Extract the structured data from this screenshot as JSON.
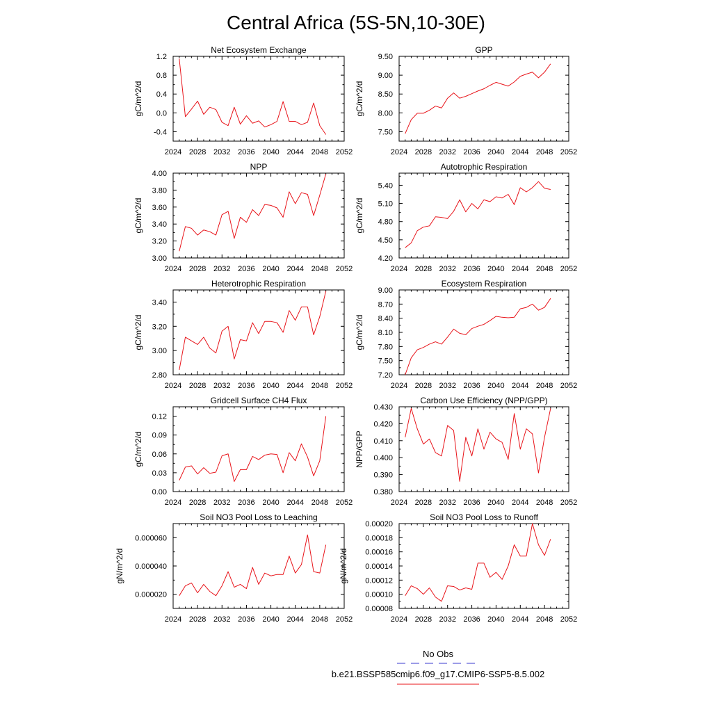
{
  "figure": {
    "title": "Central Africa (5S-5N,10-30E)",
    "series_color": "#e8141a",
    "obs_color": "#3a3acf"
  },
  "legend": {
    "obs_label": "No Obs",
    "model_label": "b.e21.BSSP585cmip6.f09_g17.CMIP6-SSP5-8.5.002"
  },
  "chart_data": [
    {
      "type": "line",
      "title": "Net Ecosystem Exchange",
      "ylabel": "gC/m^2/d",
      "xlim": [
        2024,
        2052
      ],
      "xticks": [
        "2024",
        "2028",
        "2032",
        "2036",
        "2040",
        "2044",
        "2048",
        "2052"
      ],
      "ylim": [
        -0.6,
        1.2
      ],
      "yticks": [
        "-0.4",
        "0.0",
        "0.4",
        "0.8",
        "1.2"
      ],
      "x": [
        2025,
        2026,
        2027,
        2028,
        2029,
        2030,
        2031,
        2032,
        2033,
        2034,
        2035,
        2036,
        2037,
        2038,
        2039,
        2040,
        2041,
        2042,
        2043,
        2044,
        2045,
        2046,
        2047,
        2048,
        2049
      ],
      "y": [
        1.15,
        -0.08,
        0.08,
        0.25,
        -0.03,
        0.12,
        0.07,
        -0.2,
        -0.27,
        0.12,
        -0.24,
        -0.06,
        -0.22,
        -0.17,
        -0.3,
        -0.25,
        -0.18,
        0.24,
        -0.18,
        -0.18,
        -0.25,
        -0.2,
        0.21,
        -0.27,
        -0.46
      ]
    },
    {
      "type": "line",
      "title": "GPP",
      "ylabel": "gC/m^2/d",
      "xlim": [
        2024,
        2052
      ],
      "xticks": [
        "2024",
        "2028",
        "2032",
        "2036",
        "2040",
        "2044",
        "2048",
        "2052"
      ],
      "ylim": [
        7.25,
        9.5
      ],
      "yticks": [
        "7.50",
        "8.00",
        "8.50",
        "9.00",
        "9.50"
      ],
      "x": [
        2025,
        2026,
        2027,
        2028,
        2029,
        2030,
        2031,
        2032,
        2033,
        2034,
        2035,
        2036,
        2037,
        2038,
        2039,
        2040,
        2041,
        2042,
        2043,
        2044,
        2045,
        2046,
        2047,
        2048,
        2049
      ],
      "y": [
        7.45,
        7.82,
        7.99,
        7.99,
        8.07,
        8.18,
        8.13,
        8.39,
        8.53,
        8.39,
        8.44,
        8.51,
        8.58,
        8.64,
        8.73,
        8.81,
        8.76,
        8.71,
        8.82,
        8.97,
        9.03,
        9.08,
        8.93,
        9.08,
        9.3
      ]
    },
    {
      "type": "line",
      "title": "NPP",
      "ylabel": "gC/m^2/d",
      "xlim": [
        2024,
        2052
      ],
      "xticks": [
        "2024",
        "2028",
        "2032",
        "2036",
        "2040",
        "2044",
        "2048",
        "2052"
      ],
      "ylim": [
        3.0,
        4.0
      ],
      "yticks": [
        "3.00",
        "3.20",
        "3.40",
        "3.60",
        "3.80",
        "4.00"
      ],
      "x": [
        2025,
        2026,
        2027,
        2028,
        2029,
        2030,
        2031,
        2032,
        2033,
        2034,
        2035,
        2036,
        2037,
        2038,
        2039,
        2040,
        2041,
        2042,
        2043,
        2044,
        2045,
        2046,
        2047,
        2048,
        2049
      ],
      "y": [
        3.08,
        3.37,
        3.35,
        3.27,
        3.33,
        3.31,
        3.27,
        3.51,
        3.55,
        3.23,
        3.48,
        3.42,
        3.57,
        3.5,
        3.63,
        3.62,
        3.59,
        3.48,
        3.78,
        3.64,
        3.77,
        3.75,
        3.5,
        3.74,
        3.99
      ]
    },
    {
      "type": "line",
      "title": "Autotrophic Respiration",
      "ylabel": "gC/m^2/d",
      "xlim": [
        2024,
        2052
      ],
      "xticks": [
        "2024",
        "2028",
        "2032",
        "2036",
        "2040",
        "2044",
        "2048",
        "2052"
      ],
      "ylim": [
        4.2,
        5.6
      ],
      "yticks": [
        "4.20",
        "4.50",
        "4.80",
        "5.10",
        "5.40"
      ],
      "x": [
        2025,
        2026,
        2027,
        2028,
        2029,
        2030,
        2031,
        2032,
        2033,
        2034,
        2035,
        2036,
        2037,
        2038,
        2039,
        2040,
        2041,
        2042,
        2043,
        2044,
        2045,
        2046,
        2047,
        2048,
        2049
      ],
      "y": [
        4.37,
        4.45,
        4.65,
        4.71,
        4.73,
        4.88,
        4.87,
        4.85,
        4.97,
        5.16,
        4.96,
        5.1,
        5.01,
        5.16,
        5.13,
        5.21,
        5.19,
        5.25,
        5.08,
        5.36,
        5.29,
        5.36,
        5.46,
        5.35,
        5.33
      ]
    },
    {
      "type": "line",
      "title": "Heterotrophic Respiration",
      "ylabel": "gC/m^2/d",
      "xlim": [
        2024,
        2052
      ],
      "xticks": [
        "2024",
        "2028",
        "2032",
        "2036",
        "2040",
        "2044",
        "2048",
        "2052"
      ],
      "ylim": [
        2.8,
        3.5
      ],
      "yticks": [
        "2.80",
        "3.00",
        "3.20",
        "3.40"
      ],
      "x": [
        2025,
        2026,
        2027,
        2028,
        2029,
        2030,
        2031,
        2032,
        2033,
        2034,
        2035,
        2036,
        2037,
        2038,
        2039,
        2040,
        2041,
        2042,
        2043,
        2044,
        2045,
        2046,
        2047,
        2048,
        2049
      ],
      "y": [
        2.84,
        3.11,
        3.08,
        3.05,
        3.11,
        3.02,
        2.98,
        3.16,
        3.2,
        2.93,
        3.09,
        3.08,
        3.23,
        3.14,
        3.24,
        3.24,
        3.23,
        3.15,
        3.33,
        3.25,
        3.36,
        3.36,
        3.13,
        3.28,
        3.49
      ]
    },
    {
      "type": "line",
      "title": "Ecosystem Respiration",
      "ylabel": "gC/m^2/d",
      "xlim": [
        2024,
        2052
      ],
      "xticks": [
        "2024",
        "2028",
        "2032",
        "2036",
        "2040",
        "2044",
        "2048",
        "2052"
      ],
      "ylim": [
        7.2,
        9.0
      ],
      "yticks": [
        "7.20",
        "7.50",
        "7.80",
        "8.10",
        "8.40",
        "8.70",
        "9.00"
      ],
      "x": [
        2025,
        2026,
        2027,
        2028,
        2029,
        2030,
        2031,
        2032,
        2033,
        2034,
        2035,
        2036,
        2037,
        2038,
        2039,
        2040,
        2041,
        2042,
        2043,
        2044,
        2045,
        2046,
        2047,
        2048,
        2049
      ],
      "y": [
        7.2,
        7.56,
        7.73,
        7.78,
        7.85,
        7.9,
        7.85,
        8.0,
        8.17,
        8.08,
        8.05,
        8.18,
        8.23,
        8.27,
        8.35,
        8.44,
        8.42,
        8.41,
        8.42,
        8.6,
        8.63,
        8.7,
        8.57,
        8.63,
        8.82
      ]
    },
    {
      "type": "line",
      "title": "Gridcell Surface CH4 Flux",
      "ylabel": "gC/m^2/d",
      "xlim": [
        2024,
        2052
      ],
      "xticks": [
        "2024",
        "2028",
        "2032",
        "2036",
        "2040",
        "2044",
        "2048",
        "2052"
      ],
      "ylim": [
        0.0,
        0.135
      ],
      "yticks": [
        "0.00",
        "0.03",
        "0.06",
        "0.09",
        "0.12"
      ],
      "x": [
        2025,
        2026,
        2027,
        2028,
        2029,
        2030,
        2031,
        2032,
        2033,
        2034,
        2035,
        2036,
        2037,
        2038,
        2039,
        2040,
        2041,
        2042,
        2043,
        2044,
        2045,
        2046,
        2047,
        2048,
        2049
      ],
      "y": [
        0.018,
        0.039,
        0.041,
        0.028,
        0.038,
        0.029,
        0.031,
        0.057,
        0.06,
        0.016,
        0.035,
        0.035,
        0.056,
        0.051,
        0.058,
        0.06,
        0.059,
        0.03,
        0.062,
        0.049,
        0.076,
        0.055,
        0.025,
        0.049,
        0.12
      ]
    },
    {
      "type": "line",
      "title": "Carbon Use Efficiency (NPP/GPP)",
      "ylabel": "NPP/GPP",
      "xlim": [
        2024,
        2052
      ],
      "xticks": [
        "2024",
        "2028",
        "2032",
        "2036",
        "2040",
        "2044",
        "2048",
        "2052"
      ],
      "ylim": [
        0.38,
        0.43
      ],
      "yticks": [
        "0.380",
        "0.390",
        "0.400",
        "0.410",
        "0.420",
        "0.430"
      ],
      "x": [
        2025,
        2026,
        2027,
        2028,
        2029,
        2030,
        2031,
        2032,
        2033,
        2034,
        2035,
        2036,
        2037,
        2038,
        2039,
        2040,
        2041,
        2042,
        2043,
        2044,
        2045,
        2046,
        2047,
        2048,
        2049
      ],
      "y": [
        0.412,
        0.429,
        0.417,
        0.408,
        0.411,
        0.403,
        0.401,
        0.419,
        0.416,
        0.386,
        0.412,
        0.401,
        0.417,
        0.405,
        0.415,
        0.411,
        0.409,
        0.399,
        0.426,
        0.405,
        0.417,
        0.414,
        0.391,
        0.412,
        0.429
      ]
    },
    {
      "type": "line",
      "title": "Soil NO3 Pool Loss to Leaching",
      "ylabel": "gN/m^2/d",
      "xlim": [
        2024,
        2052
      ],
      "xticks": [
        "2024",
        "2028",
        "2032",
        "2036",
        "2040",
        "2044",
        "2048",
        "2052"
      ],
      "ylim": [
        1e-05,
        7e-05
      ],
      "yticks": [
        "0.000020",
        "0.000040",
        "0.000060"
      ],
      "x": [
        2025,
        2026,
        2027,
        2028,
        2029,
        2030,
        2031,
        2032,
        2033,
        2034,
        2035,
        2036,
        2037,
        2038,
        2039,
        2040,
        2041,
        2042,
        2043,
        2044,
        2045,
        2046,
        2047,
        2048,
        2049
      ],
      "y": [
        1.9e-05,
        2.6e-05,
        2.8e-05,
        2.1e-05,
        2.7e-05,
        2.2e-05,
        1.9e-05,
        2.6e-05,
        3.6e-05,
        2.5e-05,
        2.7e-05,
        2.4e-05,
        3.9e-05,
        2.7e-05,
        3.5e-05,
        3.3e-05,
        3.4e-05,
        3.4e-05,
        4.7e-05,
        3.5e-05,
        4.1e-05,
        6.2e-05,
        3.6e-05,
        3.5e-05,
        5.5e-05
      ]
    },
    {
      "type": "line",
      "title": "Soil NO3 Pool Loss to Runoff",
      "ylabel": "gN/m^2/d",
      "xlim": [
        2024,
        2052
      ],
      "xticks": [
        "2024",
        "2028",
        "2032",
        "2036",
        "2040",
        "2044",
        "2048",
        "2052"
      ],
      "ylim": [
        8e-05,
        0.0002
      ],
      "yticks": [
        "0.00008",
        "0.00010",
        "0.00012",
        "0.00014",
        "0.00016",
        "0.00018",
        "0.00020"
      ],
      "x": [
        2025,
        2026,
        2027,
        2028,
        2029,
        2030,
        2031,
        2032,
        2033,
        2034,
        2035,
        2036,
        2037,
        2038,
        2039,
        2040,
        2041,
        2042,
        2043,
        2044,
        2045,
        2046,
        2047,
        2048,
        2049
      ],
      "y": [
        9.8e-05,
        0.000112,
        0.000108,
        0.0001,
        0.000109,
        9.6e-05,
        9e-05,
        0.000112,
        0.000111,
        0.000106,
        0.000109,
        0.000107,
        0.000144,
        0.000144,
        0.000124,
        0.000131,
        0.000121,
        0.00014,
        0.00017,
        0.000154,
        0.000154,
        0.0002,
        0.00017,
        0.000155,
        0.000178
      ]
    }
  ]
}
